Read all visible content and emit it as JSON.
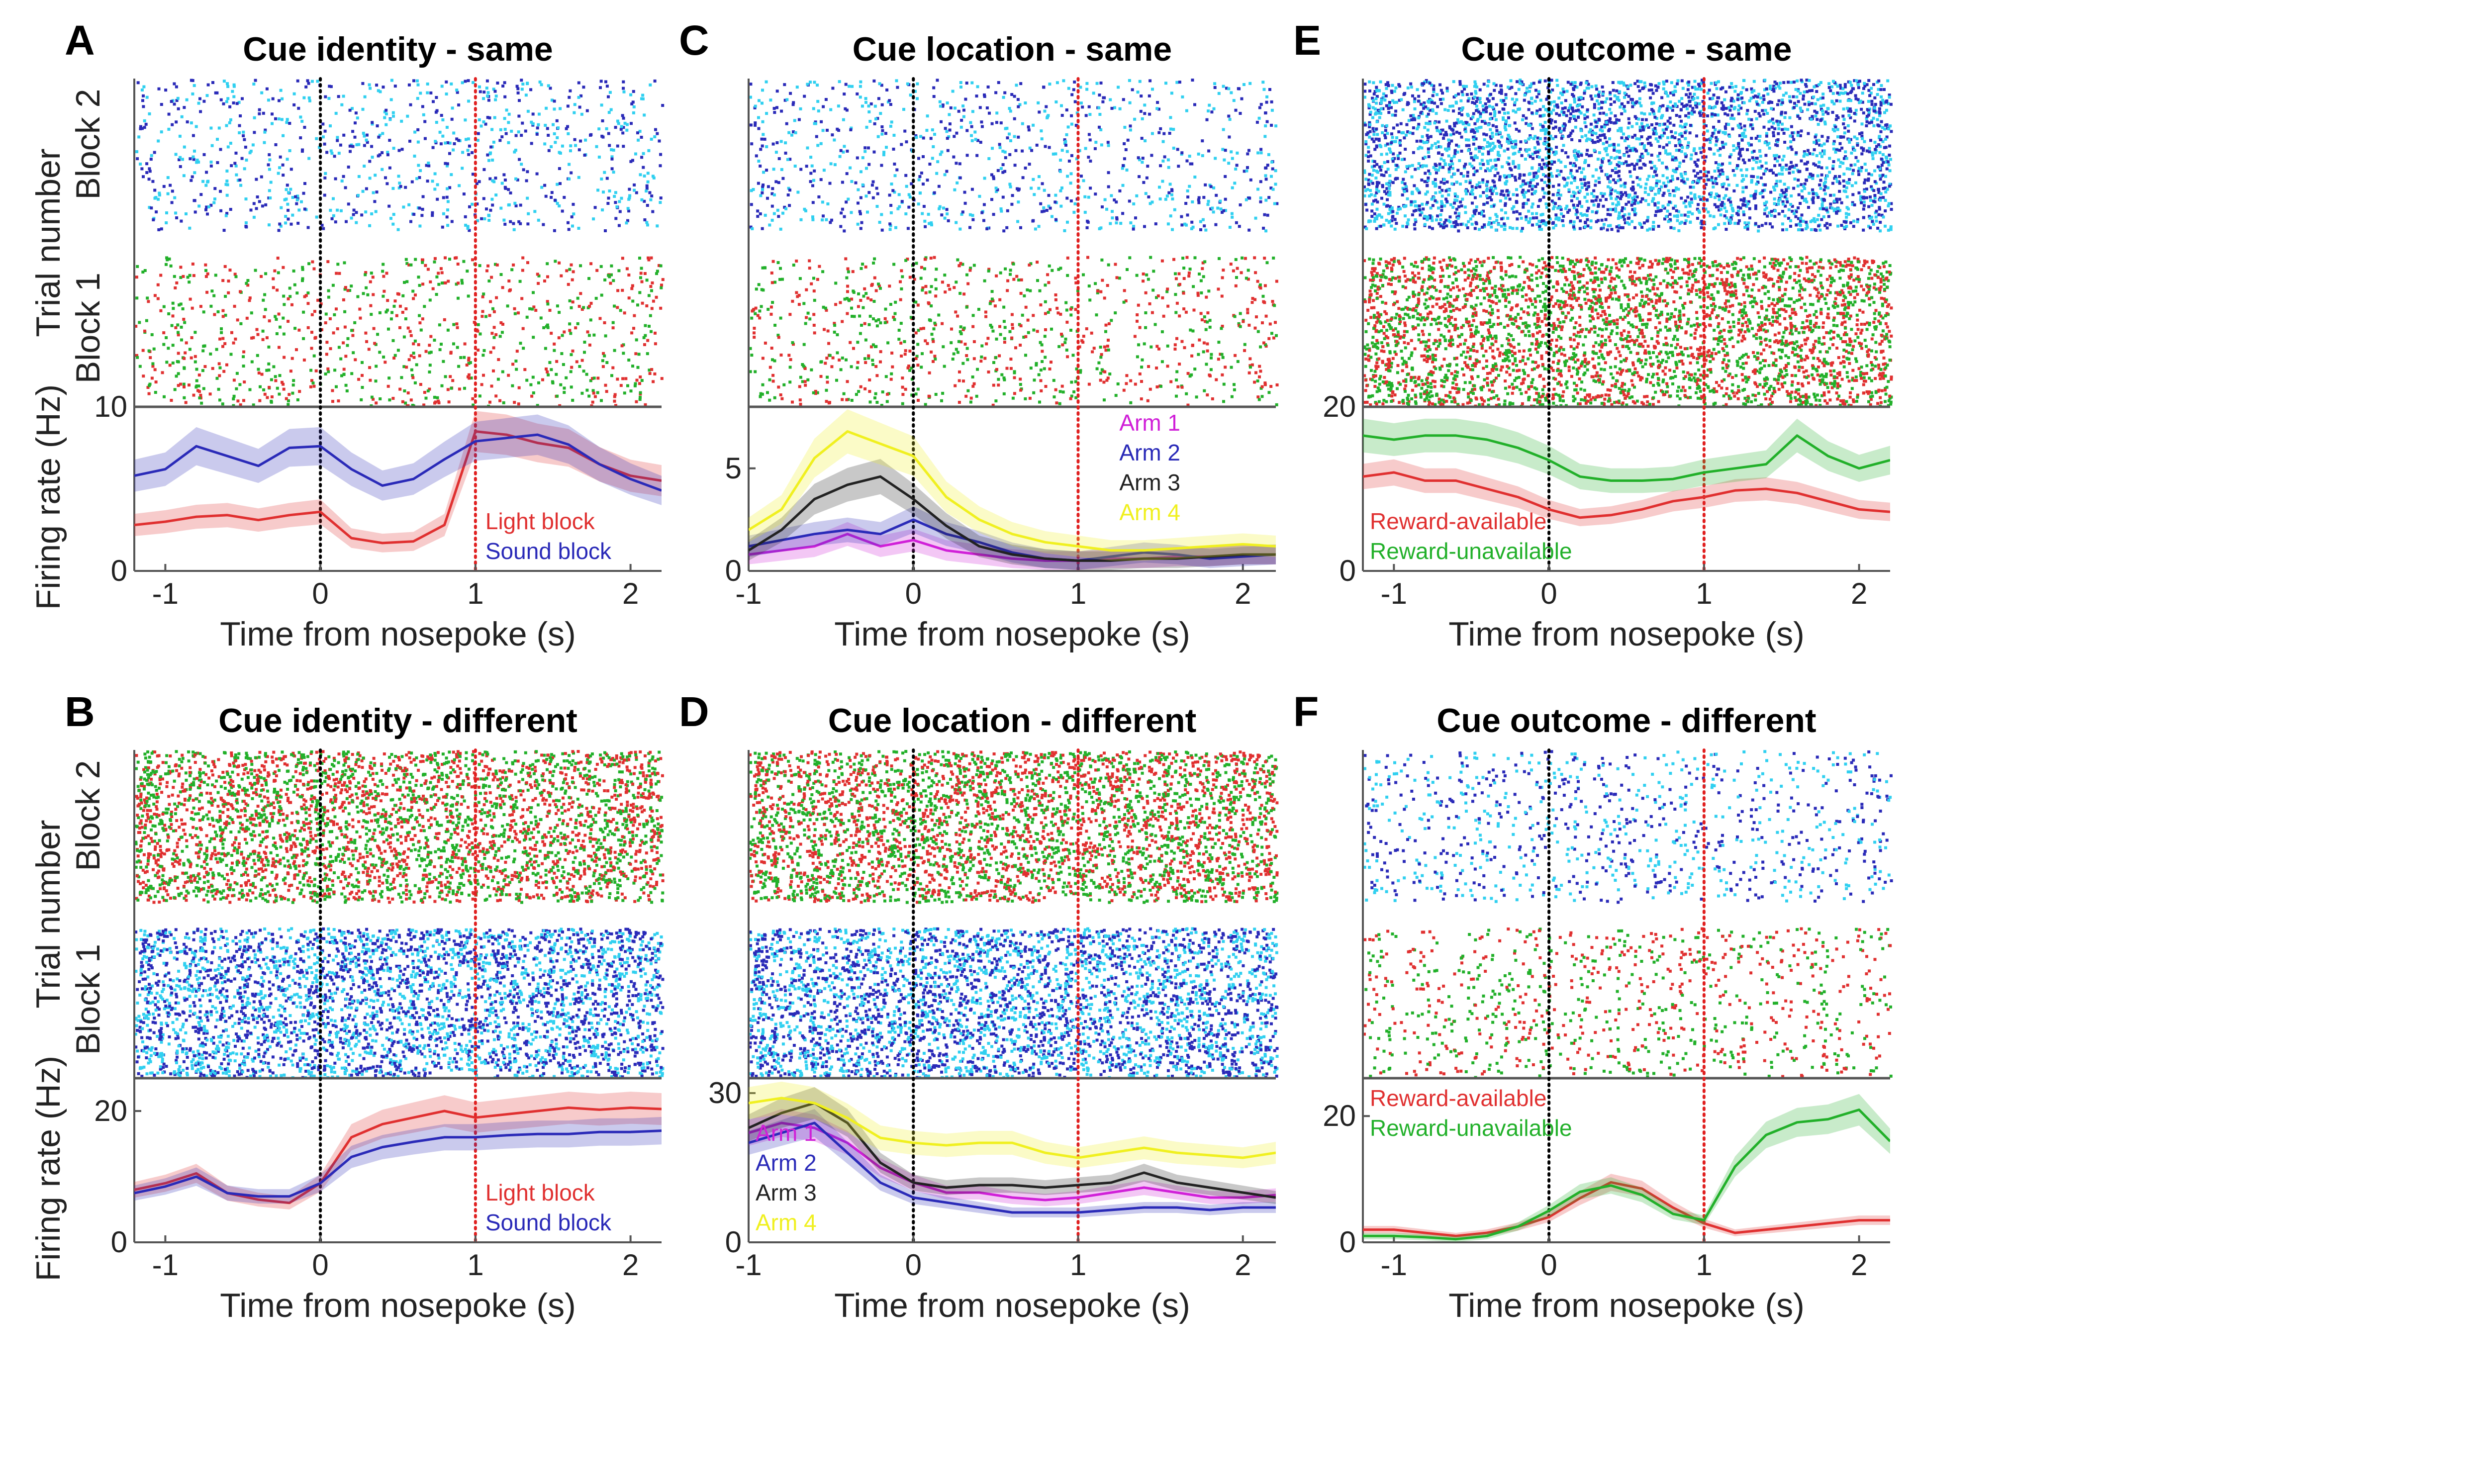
{
  "figure": {
    "ylabel_trial": "Trial number",
    "ylabel_rate": "Firing rate (Hz)",
    "xlabel": "Time from nosepoke (s)",
    "x_ticks": [
      -1,
      0,
      1,
      2
    ],
    "x_tick_labels": [
      "-1",
      "0",
      "1",
      "2"
    ],
    "block_labels": [
      "Block 2",
      "Block 1"
    ]
  },
  "colors": {
    "red": "#e03030",
    "blue": "#2a2ab8",
    "green": "#22b02a",
    "cyan": "#30d0f0",
    "purple": "#d020d8",
    "yellow": "#f0f020",
    "black": "#222222",
    "marker_zero": "#000000",
    "marker_one": "#e02020"
  },
  "chart_data": [
    {
      "type": "line",
      "panel": "A",
      "title": "Cue identity - same",
      "xlim": [
        -1.2,
        2.2
      ],
      "ylim": [
        0,
        10
      ],
      "y_ticks": [
        0,
        10
      ],
      "y_tick_labels": [
        "0",
        "10"
      ],
      "show_block_labels": true,
      "raster": {
        "block2": [
          "cyan",
          "blue"
        ],
        "block1": [
          "green",
          "red"
        ],
        "density": "sparse"
      },
      "legend": [
        "Light block",
        "Sound block"
      ],
      "legend_position": "lower-right",
      "x": [
        -1.2,
        -1.0,
        -0.8,
        -0.6,
        -0.4,
        -0.2,
        0.0,
        0.2,
        0.4,
        0.6,
        0.8,
        1.0,
        1.2,
        1.4,
        1.6,
        1.8,
        2.0,
        2.2
      ],
      "series": [
        {
          "name": "Light block",
          "color": "red",
          "values": [
            2.8,
            3.0,
            3.3,
            3.4,
            3.1,
            3.4,
            3.6,
            2.0,
            1.7,
            1.8,
            2.8,
            8.5,
            8.3,
            7.8,
            7.5,
            6.5,
            5.8,
            5.5
          ]
        },
        {
          "name": "Sound block",
          "color": "blue",
          "values": [
            5.8,
            6.2,
            7.6,
            7.0,
            6.4,
            7.5,
            7.6,
            6.2,
            5.2,
            5.6,
            6.8,
            7.9,
            8.1,
            8.3,
            7.7,
            6.5,
            5.6,
            4.9
          ]
        }
      ]
    },
    {
      "type": "line",
      "panel": "B",
      "title": "Cue identity - different",
      "xlim": [
        -1.2,
        2.2
      ],
      "ylim": [
        0,
        25
      ],
      "y_ticks": [
        0,
        20
      ],
      "y_tick_labels": [
        "0",
        "20"
      ],
      "show_block_labels": true,
      "raster": {
        "block2": [
          "green",
          "red"
        ],
        "block1": [
          "blue",
          "cyan"
        ],
        "density": "dense"
      },
      "legend": [
        "Light block",
        "Sound block"
      ],
      "legend_position": "lower-right",
      "x": [
        -1.2,
        -1.0,
        -0.8,
        -0.6,
        -0.4,
        -0.2,
        0.0,
        0.2,
        0.4,
        0.6,
        0.8,
        1.0,
        1.2,
        1.4,
        1.6,
        1.8,
        2.0,
        2.2
      ],
      "series": [
        {
          "name": "Light block",
          "color": "red",
          "values": [
            8,
            9,
            10.5,
            7.5,
            6.5,
            6,
            9,
            16,
            18,
            19,
            20,
            19,
            19.5,
            20,
            20.5,
            20.2,
            20.5,
            20.3
          ]
        },
        {
          "name": "Sound block",
          "color": "blue",
          "values": [
            7.5,
            8.5,
            10,
            7.5,
            7,
            7,
            9,
            13,
            14.5,
            15.3,
            16,
            16,
            16.3,
            16.5,
            16.5,
            16.8,
            16.8,
            17
          ]
        }
      ]
    },
    {
      "type": "line",
      "panel": "C",
      "title": "Cue location - same",
      "xlim": [
        -1.0,
        2.2
      ],
      "ylim": [
        0,
        8
      ],
      "y_ticks": [
        0,
        5
      ],
      "y_tick_labels": [
        "0",
        "5"
      ],
      "show_block_labels": false,
      "raster": {
        "block2": [
          "blue",
          "cyan"
        ],
        "block1": [
          "red",
          "green"
        ],
        "density": "sparse"
      },
      "legend": [
        "Arm 1",
        "Arm 2",
        "Arm 3",
        "Arm 4"
      ],
      "legend_position": "upper-right",
      "x": [
        -1.0,
        -0.8,
        -0.6,
        -0.4,
        -0.2,
        0.0,
        0.2,
        0.4,
        0.6,
        0.8,
        1.0,
        1.2,
        1.4,
        1.6,
        1.8,
        2.0,
        2.2
      ],
      "series": [
        {
          "name": "Arm 1",
          "color": "purple",
          "values": [
            0.8,
            1.0,
            1.2,
            1.8,
            1.2,
            1.5,
            1.0,
            0.8,
            0.6,
            0.5,
            0.5,
            0.6,
            0.6,
            0.7,
            0.7,
            0.8,
            0.8
          ]
        },
        {
          "name": "Arm 2",
          "color": "blue",
          "values": [
            1.2,
            1.5,
            1.8,
            2.0,
            1.8,
            2.5,
            1.8,
            1.4,
            0.9,
            0.6,
            0.5,
            0.7,
            0.9,
            0.8,
            0.6,
            0.7,
            0.8
          ]
        },
        {
          "name": "Arm 3",
          "color": "black",
          "values": [
            1.0,
            2.0,
            3.5,
            4.2,
            4.6,
            3.5,
            2.2,
            1.2,
            0.8,
            0.6,
            0.5,
            0.5,
            0.6,
            0.6,
            0.7,
            0.8,
            0.8
          ]
        },
        {
          "name": "Arm 4",
          "color": "yellow",
          "values": [
            2.0,
            3.0,
            5.5,
            6.8,
            6.2,
            5.6,
            3.6,
            2.5,
            1.8,
            1.4,
            1.2,
            1.0,
            1.0,
            1.1,
            1.2,
            1.3,
            1.2
          ]
        }
      ]
    },
    {
      "type": "line",
      "panel": "D",
      "title": "Cue location - different",
      "xlim": [
        -1.0,
        2.2
      ],
      "ylim": [
        0,
        33
      ],
      "y_ticks": [
        0,
        30
      ],
      "y_tick_labels": [
        "0",
        "30"
      ],
      "show_block_labels": false,
      "raster": {
        "block2": [
          "green",
          "red"
        ],
        "block1": [
          "blue",
          "cyan"
        ],
        "density": "dense"
      },
      "legend": [
        "Arm 1",
        "Arm 2",
        "Arm 3",
        "Arm 4"
      ],
      "legend_position": "lower-left",
      "x": [
        -1.0,
        -0.8,
        -0.6,
        -0.4,
        -0.2,
        0.0,
        0.2,
        0.4,
        0.6,
        0.8,
        1.0,
        1.2,
        1.4,
        1.6,
        1.8,
        2.0,
        2.2
      ],
      "series": [
        {
          "name": "Arm 1",
          "color": "purple",
          "values": [
            22,
            24,
            23,
            20,
            15,
            12,
            10,
            10,
            9,
            8.5,
            9,
            10,
            11,
            10,
            9,
            9,
            9.5
          ]
        },
        {
          "name": "Arm 2",
          "color": "blue",
          "values": [
            20,
            22,
            24,
            18,
            12,
            9,
            8,
            7,
            6,
            6,
            6,
            6.5,
            7,
            7,
            6.5,
            7,
            7
          ]
        },
        {
          "name": "Arm 3",
          "color": "black",
          "values": [
            23,
            26,
            28,
            24,
            16,
            12,
            11,
            11.5,
            11.5,
            11,
            11.5,
            12,
            14,
            12,
            11,
            10,
            9
          ]
        },
        {
          "name": "Arm 4",
          "color": "yellow",
          "values": [
            28,
            29,
            28,
            25,
            21,
            20,
            19.5,
            20,
            20,
            18,
            17,
            18,
            19,
            18,
            17.5,
            17,
            18
          ]
        }
      ]
    },
    {
      "type": "line",
      "panel": "E",
      "title": "Cue outcome - same",
      "xlim": [
        -1.2,
        2.2
      ],
      "ylim": [
        0,
        20
      ],
      "y_ticks": [
        0,
        20
      ],
      "y_tick_labels": [
        "0",
        "20"
      ],
      "show_block_labels": false,
      "raster": {
        "block2": [
          "blue",
          "cyan"
        ],
        "block1": [
          "green",
          "red"
        ],
        "density": "dense"
      },
      "legend": [
        "Reward-available",
        "Reward-unavailable"
      ],
      "legend_position": "lower-left",
      "x": [
        -1.2,
        -1.0,
        -0.8,
        -0.6,
        -0.4,
        -0.2,
        0.0,
        0.2,
        0.4,
        0.6,
        0.8,
        1.0,
        1.2,
        1.4,
        1.6,
        1.8,
        2.0,
        2.2
      ],
      "series": [
        {
          "name": "Reward-available",
          "color": "red",
          "values": [
            11.5,
            12,
            11,
            11,
            10,
            9,
            7.5,
            6.5,
            6.8,
            7.5,
            8.5,
            9,
            9.8,
            10,
            9.5,
            8.5,
            7.5,
            7.2
          ]
        },
        {
          "name": "Reward-unavailable",
          "color": "green",
          "values": [
            16.5,
            16,
            16.5,
            16.5,
            16,
            15,
            13.5,
            11.5,
            11,
            11,
            11.2,
            12,
            12.5,
            13,
            16.5,
            14,
            12.5,
            13.5
          ]
        }
      ]
    },
    {
      "type": "line",
      "panel": "F",
      "title": "Cue outcome - different",
      "xlim": [
        -1.2,
        2.2
      ],
      "ylim": [
        0,
        26
      ],
      "y_ticks": [
        0,
        20
      ],
      "y_tick_labels": [
        "0",
        "20"
      ],
      "show_block_labels": false,
      "raster": {
        "block2": [
          "cyan",
          "blue"
        ],
        "block1": [
          "green",
          "red"
        ],
        "density": "sparse"
      },
      "legend": [
        "Reward-available",
        "Reward-unavailable"
      ],
      "legend_position": "upper-left",
      "x": [
        -1.2,
        -1.0,
        -0.8,
        -0.6,
        -0.4,
        -0.2,
        0.0,
        0.2,
        0.4,
        0.6,
        0.8,
        1.0,
        1.2,
        1.4,
        1.6,
        1.8,
        2.0,
        2.2
      ],
      "series": [
        {
          "name": "Reward-available",
          "color": "red",
          "values": [
            2,
            2,
            1.5,
            1,
            1.5,
            2.5,
            4,
            7,
            9.5,
            8.5,
            5.5,
            3,
            1.5,
            2,
            2.5,
            3,
            3.5,
            3.5
          ]
        },
        {
          "name": "Reward-unavailable",
          "color": "green",
          "values": [
            1,
            1,
            0.8,
            0.5,
            1,
            2.5,
            5,
            8,
            9,
            7.5,
            4.5,
            3.5,
            12,
            17,
            19,
            19.5,
            21,
            16
          ]
        }
      ]
    }
  ]
}
